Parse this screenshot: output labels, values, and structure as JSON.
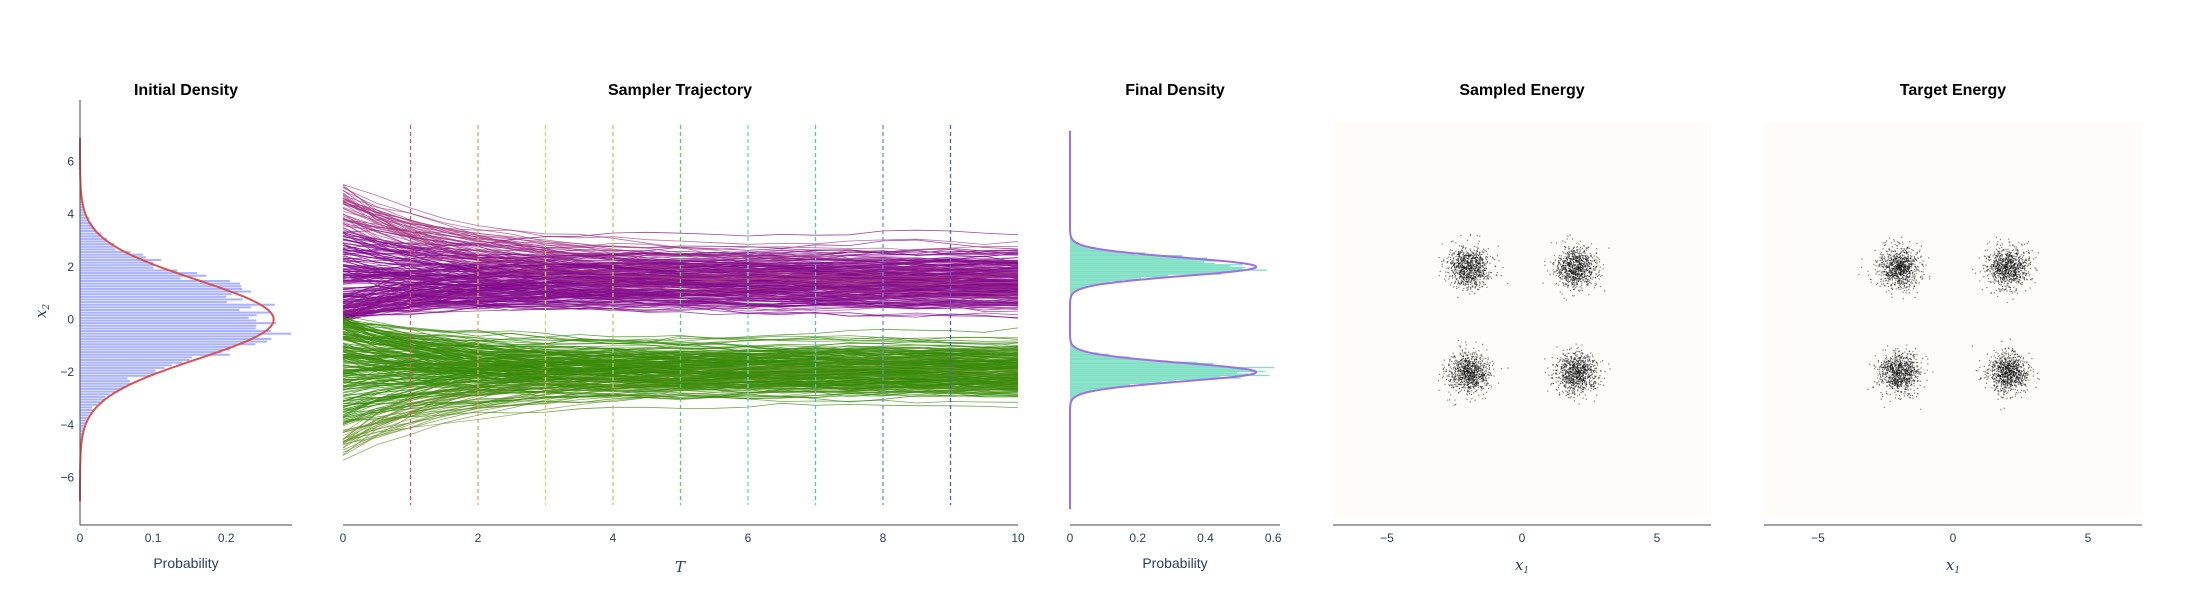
{
  "chart_data": [
    {
      "type": "histogram",
      "title": "Initial Density",
      "orientation": "horizontal",
      "xlabel": "Probability",
      "ylabel": "x2",
      "xlim": [
        0,
        0.29
      ],
      "ylim": [
        -7.5,
        7.5
      ],
      "xticks": [
        {
          "v": 0,
          "t": "0"
        },
        {
          "v": 0.1,
          "t": "0.1"
        },
        {
          "v": 0.2,
          "t": "0.2"
        }
      ],
      "yticks": [
        {
          "v": -6,
          "t": "−6"
        },
        {
          "v": -4,
          "t": "−4"
        },
        {
          "v": -2,
          "t": "−2"
        },
        {
          "v": 0,
          "t": "0"
        },
        {
          "v": 2,
          "t": "2"
        },
        {
          "v": 4,
          "t": "4"
        },
        {
          "v": 6,
          "t": "6"
        }
      ],
      "histogram": {
        "mean": 0,
        "std": 1.5,
        "peak": 0.27,
        "color": "#aab3ff"
      },
      "density_curve": {
        "mean": 0,
        "std": 1.5,
        "peak": 0.265,
        "color": "#d9534f"
      }
    },
    {
      "type": "line",
      "title": "Sampler Trajectory",
      "xlabel": "T",
      "xlim": [
        0,
        10
      ],
      "ylim": [
        -7.5,
        7.5
      ],
      "xticks": [
        {
          "v": 0,
          "t": "0"
        },
        {
          "v": 2,
          "t": "2"
        },
        {
          "v": 4,
          "t": "4"
        },
        {
          "v": 6,
          "t": "6"
        },
        {
          "v": 8,
          "t": "8"
        },
        {
          "v": 10,
          "t": "10"
        }
      ],
      "time_markers": [
        {
          "t": 1,
          "color": "#d9536f"
        },
        {
          "t": 2,
          "color": "#e8a05c"
        },
        {
          "t": 3,
          "color": "#d8d070"
        },
        {
          "t": 4,
          "color": "#b7c96a"
        },
        {
          "t": 5,
          "color": "#5cc870"
        },
        {
          "t": 6,
          "color": "#6cd5c8"
        },
        {
          "t": 7,
          "color": "#5cb8d8"
        },
        {
          "t": 8,
          "color": "#6a8fd8"
        },
        {
          "t": 9,
          "color": "#4a5ed0"
        }
      ],
      "trajectory_groups": [
        {
          "start_range": [
            0,
            5.1
          ],
          "end_mean": 1.5,
          "end_spread": 0.55,
          "start_color": "#c06080",
          "end_color": "#7a0090"
        },
        {
          "start_range": [
            -5.3,
            0
          ],
          "end_mean": -1.9,
          "end_spread": 0.5,
          "start_color": "#9a9a50",
          "end_color": "#2a8a00"
        }
      ]
    },
    {
      "type": "histogram",
      "title": "Final Density",
      "orientation": "horizontal",
      "xlabel": "Probability",
      "xlim": [
        0,
        0.62
      ],
      "ylim": [
        -7.5,
        7.5
      ],
      "xticks": [
        {
          "v": 0,
          "t": "0"
        },
        {
          "v": 0.2,
          "t": "0.2"
        },
        {
          "v": 0.4,
          "t": "0.4"
        },
        {
          "v": 0.6,
          "t": "0.6"
        }
      ],
      "modes": [
        {
          "mean": 2,
          "std": 0.35,
          "peak": 0.55
        },
        {
          "mean": -2,
          "std": 0.35,
          "peak": 0.55
        }
      ],
      "histogram_color": "#7fe0c4",
      "curve_color": "#a070e0"
    },
    {
      "type": "scatter",
      "title": "Sampled Energy",
      "xlabel": "x1",
      "xlim": [
        -7,
        7
      ],
      "ylim": [
        -7.5,
        7.5
      ],
      "xticks": [
        {
          "v": -5,
          "t": "−5"
        },
        {
          "v": 0,
          "t": "0"
        },
        {
          "v": 5,
          "t": "5"
        }
      ],
      "clusters": [
        {
          "x": -2,
          "y": 2
        },
        {
          "x": 2,
          "y": 2
        },
        {
          "x": -2,
          "y": -2
        },
        {
          "x": 2,
          "y": -2
        }
      ],
      "cluster_std": 0.38
    },
    {
      "type": "scatter",
      "title": "Target Energy",
      "xlabel": "x1",
      "xlim": [
        -7,
        7
      ],
      "ylim": [
        -7.5,
        7.5
      ],
      "xticks": [
        {
          "v": -5,
          "t": "−5"
        },
        {
          "v": 0,
          "t": "0"
        },
        {
          "v": 5,
          "t": "5"
        }
      ],
      "clusters": [
        {
          "x": -2,
          "y": 2
        },
        {
          "x": 2,
          "y": 2
        },
        {
          "x": -2,
          "y": -2
        },
        {
          "x": 2,
          "y": -2
        }
      ],
      "cluster_std": 0.38
    }
  ]
}
